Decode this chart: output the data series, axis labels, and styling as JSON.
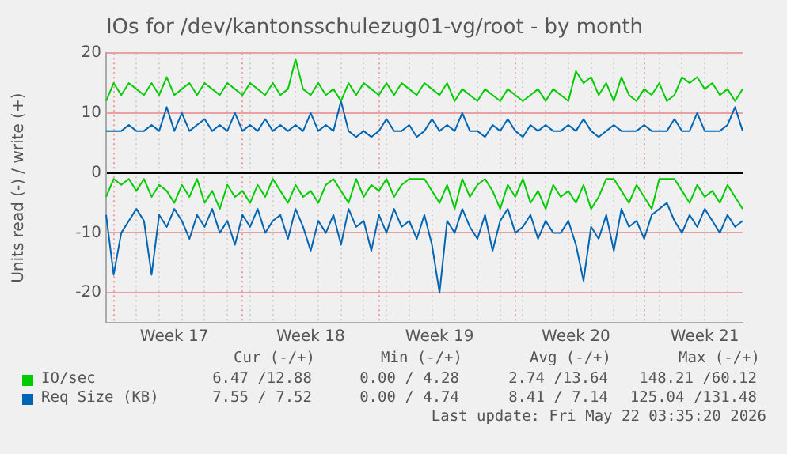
{
  "chart_data": {
    "type": "line",
    "title": "IOs for /dev/kantonsschulezug01-vg/root - by month",
    "ylabel": "Units read (-) / write (+)",
    "categories": [
      null,
      null,
      null,
      null,
      null,
      null,
      null,
      null,
      null,
      "Week 17",
      null,
      null,
      null,
      null,
      null,
      null,
      null,
      null,
      null,
      null,
      null,
      null,
      null,
      null,
      null,
      null,
      null,
      "Week 18",
      null,
      null,
      null,
      null,
      null,
      null,
      null,
      null,
      null,
      null,
      null,
      null,
      null,
      null,
      null,
      null,
      "Week 19",
      null,
      null,
      null,
      null,
      null,
      null,
      null,
      null,
      null,
      null,
      null,
      null,
      null,
      null,
      null,
      null,
      null,
      "Week 20",
      null,
      null,
      null,
      null,
      null,
      null,
      null,
      null,
      null,
      null,
      null,
      null,
      null,
      null,
      null,
      null,
      "Week 21",
      null,
      null,
      null,
      null,
      null
    ],
    "ylim": [
      -25,
      20
    ],
    "yticks": [
      -20,
      -10,
      0,
      10,
      20
    ],
    "grid": true,
    "legend": "bottom",
    "marker": "none",
    "line_style": "solid",
    "series": [
      {
        "name": "IO/sec",
        "color": "#00cc00",
        "values": [
          12,
          15,
          13,
          15,
          14,
          13,
          15,
          13,
          16,
          13,
          14,
          15,
          13,
          15,
          14,
          13,
          15,
          14,
          13,
          15,
          14,
          13,
          15,
          13,
          14,
          19,
          14,
          13,
          15,
          13,
          14,
          12,
          15,
          13,
          15,
          14,
          13,
          15,
          13,
          15,
          14,
          13,
          15,
          14,
          13,
          15,
          12,
          14,
          13,
          12,
          14,
          13,
          12,
          14,
          13,
          12,
          13,
          14,
          12,
          14,
          13,
          12,
          17,
          15,
          16,
          13,
          15,
          12,
          16,
          13,
          12,
          14,
          13,
          15,
          12,
          13,
          16,
          15,
          16,
          14,
          15,
          13,
          14,
          12,
          14
        ]
      },
      {
        "color": "#00cc00",
        "values": [
          -4,
          -1,
          -2,
          -1,
          -3,
          -1,
          -4,
          -2,
          -3,
          -5,
          -2,
          -4,
          -1,
          -5,
          -3,
          -6,
          -2,
          -4,
          -3,
          -5,
          -2,
          -4,
          -1,
          -3,
          -5,
          -2,
          -4,
          -3,
          -5,
          -2,
          -1,
          -3,
          -5,
          -1,
          -4,
          -2,
          -3,
          -1,
          -4,
          -2,
          -1,
          -1,
          -1,
          -3,
          -5,
          -2,
          -6,
          -1,
          -4,
          -2,
          -1,
          -3,
          -6,
          -2,
          -4,
          -1,
          -5,
          -3,
          -6,
          -2,
          -4,
          -3,
          -5,
          -2,
          -6,
          -4,
          -1,
          -1,
          -3,
          -5,
          -2,
          -4,
          -6,
          -1,
          -1,
          -1,
          -3,
          -5,
          -2,
          -4,
          -3,
          -5,
          -2,
          -4,
          -6
        ]
      },
      {
        "name": "Req Size (KB)",
        "color": "#0066b3",
        "values": [
          7,
          7,
          7,
          8,
          7,
          7,
          8,
          7,
          11,
          7,
          10,
          7,
          8,
          9,
          7,
          8,
          7,
          10,
          7,
          8,
          7,
          9,
          7,
          8,
          7,
          8,
          7,
          10,
          7,
          8,
          7,
          12,
          7,
          6,
          7,
          6,
          7,
          9,
          7,
          7,
          8,
          6,
          7,
          9,
          7,
          8,
          7,
          10,
          7,
          7,
          6,
          8,
          7,
          9,
          7,
          6,
          8,
          7,
          8,
          7,
          7,
          8,
          7,
          9,
          7,
          6,
          7,
          8,
          7,
          7,
          7,
          8,
          7,
          7,
          7,
          9,
          7,
          7,
          10,
          7,
          7,
          7,
          8,
          11,
          7
        ]
      },
      {
        "color": "#0066b3",
        "values": [
          -7,
          -17,
          -10,
          -8,
          -6,
          -8,
          -17,
          -7,
          -9,
          -6,
          -8,
          -11,
          -7,
          -9,
          -6,
          -10,
          -8,
          -12,
          -7,
          -9,
          -6,
          -10,
          -8,
          -7,
          -11,
          -6,
          -9,
          -13,
          -8,
          -10,
          -7,
          -12,
          -6,
          -9,
          -8,
          -13,
          -7,
          -10,
          -6,
          -9,
          -8,
          -11,
          -7,
          -12,
          -20,
          -8,
          -10,
          -6,
          -9,
          -11,
          -7,
          -13,
          -8,
          -6,
          -10,
          -9,
          -7,
          -11,
          -8,
          -10,
          -10,
          -8,
          -12,
          -18,
          -9,
          -11,
          -7,
          -13,
          -6,
          -9,
          -8,
          -11,
          -7,
          -6,
          -5,
          -8,
          -10,
          -7,
          -9,
          -6,
          -8,
          -10,
          -7,
          -9,
          -8
        ]
      }
    ],
    "annotations": [
      "Cur (-/+)",
      "Min (-/+)",
      "Avg (-/+)",
      "Max (-/+)",
      "6.47 /12.88",
      "0.00 / 4.28",
      "2.74 /13.64",
      "148.21 /60.12",
      "7.55 / 7.52",
      "0.00 / 4.74",
      "8.41 / 7.14",
      "125.04 /131.48",
      "Last update: Fri May 22 03:35:20 2026"
    ]
  }
}
